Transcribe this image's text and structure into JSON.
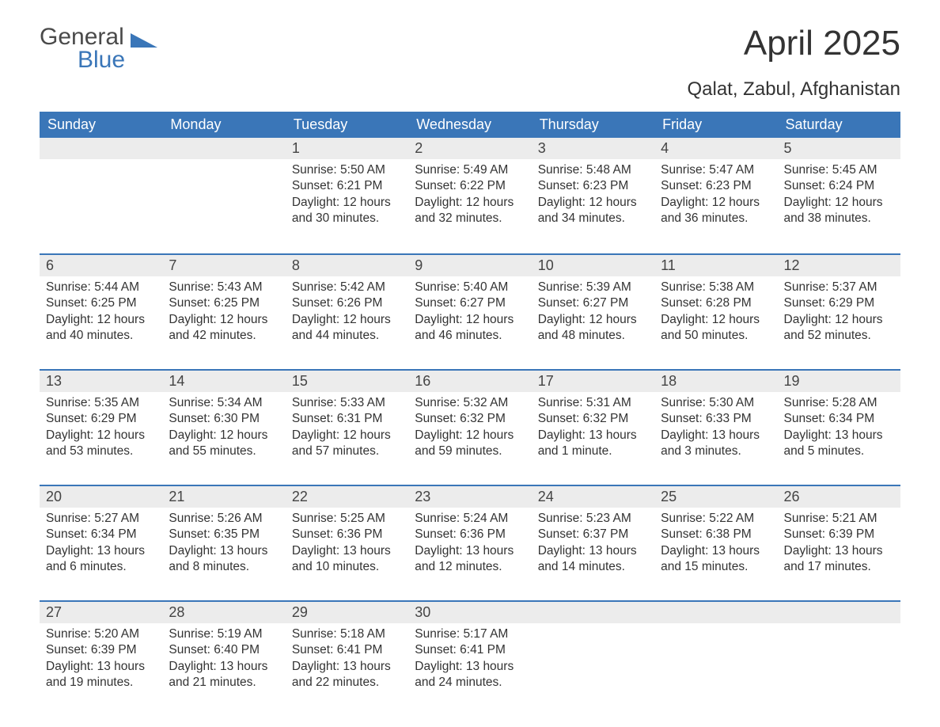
{
  "logo": {
    "text1": "General",
    "text2": "Blue",
    "tri_color": "#3a76b8",
    "text1_color": "#4a4a4a"
  },
  "title": "April 2025",
  "subtitle": "Qalat, Zabul, Afghanistan",
  "colors": {
    "header_bg": "#3a76b8",
    "header_text": "#ffffff",
    "daynum_bg": "#ececec",
    "border_top": "#3a76b8",
    "body_text": "#333333",
    "page_bg": "#ffffff"
  },
  "fonts": {
    "title_size_pt": 33,
    "subtitle_size_pt": 18,
    "header_size_pt": 14,
    "daynum_size_pt": 14,
    "body_size_pt": 12
  },
  "dayNames": [
    "Sunday",
    "Monday",
    "Tuesday",
    "Wednesday",
    "Thursday",
    "Friday",
    "Saturday"
  ],
  "labels": {
    "sunrise": "Sunrise:",
    "sunset": "Sunset:",
    "daylight": "Daylight:"
  },
  "weeks": [
    [
      null,
      null,
      {
        "n": "1",
        "sr": "5:50 AM",
        "ss": "6:21 PM",
        "dl": "12 hours and 30 minutes."
      },
      {
        "n": "2",
        "sr": "5:49 AM",
        "ss": "6:22 PM",
        "dl": "12 hours and 32 minutes."
      },
      {
        "n": "3",
        "sr": "5:48 AM",
        "ss": "6:23 PM",
        "dl": "12 hours and 34 minutes."
      },
      {
        "n": "4",
        "sr": "5:47 AM",
        "ss": "6:23 PM",
        "dl": "12 hours and 36 minutes."
      },
      {
        "n": "5",
        "sr": "5:45 AM",
        "ss": "6:24 PM",
        "dl": "12 hours and 38 minutes."
      }
    ],
    [
      {
        "n": "6",
        "sr": "5:44 AM",
        "ss": "6:25 PM",
        "dl": "12 hours and 40 minutes."
      },
      {
        "n": "7",
        "sr": "5:43 AM",
        "ss": "6:25 PM",
        "dl": "12 hours and 42 minutes."
      },
      {
        "n": "8",
        "sr": "5:42 AM",
        "ss": "6:26 PM",
        "dl": "12 hours and 44 minutes."
      },
      {
        "n": "9",
        "sr": "5:40 AM",
        "ss": "6:27 PM",
        "dl": "12 hours and 46 minutes."
      },
      {
        "n": "10",
        "sr": "5:39 AM",
        "ss": "6:27 PM",
        "dl": "12 hours and 48 minutes."
      },
      {
        "n": "11",
        "sr": "5:38 AM",
        "ss": "6:28 PM",
        "dl": "12 hours and 50 minutes."
      },
      {
        "n": "12",
        "sr": "5:37 AM",
        "ss": "6:29 PM",
        "dl": "12 hours and 52 minutes."
      }
    ],
    [
      {
        "n": "13",
        "sr": "5:35 AM",
        "ss": "6:29 PM",
        "dl": "12 hours and 53 minutes."
      },
      {
        "n": "14",
        "sr": "5:34 AM",
        "ss": "6:30 PM",
        "dl": "12 hours and 55 minutes."
      },
      {
        "n": "15",
        "sr": "5:33 AM",
        "ss": "6:31 PM",
        "dl": "12 hours and 57 minutes."
      },
      {
        "n": "16",
        "sr": "5:32 AM",
        "ss": "6:32 PM",
        "dl": "12 hours and 59 minutes."
      },
      {
        "n": "17",
        "sr": "5:31 AM",
        "ss": "6:32 PM",
        "dl": "13 hours and 1 minute."
      },
      {
        "n": "18",
        "sr": "5:30 AM",
        "ss": "6:33 PM",
        "dl": "13 hours and 3 minutes."
      },
      {
        "n": "19",
        "sr": "5:28 AM",
        "ss": "6:34 PM",
        "dl": "13 hours and 5 minutes."
      }
    ],
    [
      {
        "n": "20",
        "sr": "5:27 AM",
        "ss": "6:34 PM",
        "dl": "13 hours and 6 minutes."
      },
      {
        "n": "21",
        "sr": "5:26 AM",
        "ss": "6:35 PM",
        "dl": "13 hours and 8 minutes."
      },
      {
        "n": "22",
        "sr": "5:25 AM",
        "ss": "6:36 PM",
        "dl": "13 hours and 10 minutes."
      },
      {
        "n": "23",
        "sr": "5:24 AM",
        "ss": "6:36 PM",
        "dl": "13 hours and 12 minutes."
      },
      {
        "n": "24",
        "sr": "5:23 AM",
        "ss": "6:37 PM",
        "dl": "13 hours and 14 minutes."
      },
      {
        "n": "25",
        "sr": "5:22 AM",
        "ss": "6:38 PM",
        "dl": "13 hours and 15 minutes."
      },
      {
        "n": "26",
        "sr": "5:21 AM",
        "ss": "6:39 PM",
        "dl": "13 hours and 17 minutes."
      }
    ],
    [
      {
        "n": "27",
        "sr": "5:20 AM",
        "ss": "6:39 PM",
        "dl": "13 hours and 19 minutes."
      },
      {
        "n": "28",
        "sr": "5:19 AM",
        "ss": "6:40 PM",
        "dl": "13 hours and 21 minutes."
      },
      {
        "n": "29",
        "sr": "5:18 AM",
        "ss": "6:41 PM",
        "dl": "13 hours and 22 minutes."
      },
      {
        "n": "30",
        "sr": "5:17 AM",
        "ss": "6:41 PM",
        "dl": "13 hours and 24 minutes."
      },
      null,
      null,
      null
    ]
  ]
}
